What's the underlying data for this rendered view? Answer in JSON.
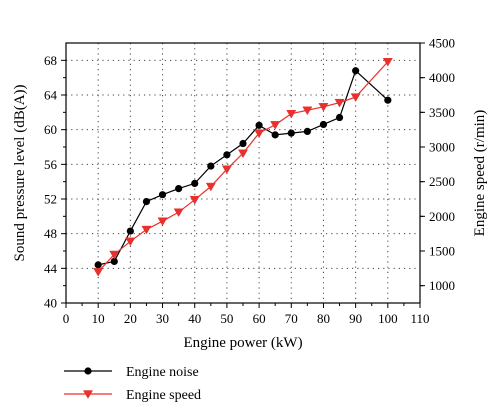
{
  "chart_data": {
    "type": "line",
    "xlabel": "Engine power (kW)",
    "ylabel_left": "Sound pressure level (dB(A))",
    "ylabel_right": "Engine speed (r/min)",
    "xlim": [
      0,
      110
    ],
    "ylim_left": [
      40,
      70
    ],
    "ylim_right": [
      750,
      4500
    ],
    "x_ticks": [
      0,
      10,
      20,
      30,
      40,
      50,
      60,
      70,
      80,
      90,
      100,
      110
    ],
    "y_left_ticks": [
      40,
      44,
      48,
      52,
      56,
      60,
      64,
      68
    ],
    "y_right_ticks": [
      1000,
      1500,
      2000,
      2500,
      3000,
      3500,
      4000,
      4500
    ],
    "grid": true,
    "legend_position": "below",
    "series": [
      {
        "name": "Engine noise",
        "axis": "left",
        "color": "#000000",
        "marker": "circle",
        "x": [
          10,
          15,
          20,
          25,
          30,
          35,
          40,
          45,
          50,
          55,
          60,
          65,
          70,
          75,
          80,
          85,
          90,
          100
        ],
        "y": [
          44.4,
          44.8,
          48.3,
          51.7,
          52.5,
          53.2,
          53.8,
          55.8,
          57.1,
          58.4,
          60.5,
          59.4,
          59.6,
          59.8,
          60.6,
          61.4,
          66.8,
          63.4
        ]
      },
      {
        "name": "Engine speed",
        "axis": "right",
        "color": "#e8312c",
        "marker": "triangle-down",
        "x": [
          10,
          15,
          20,
          25,
          30,
          35,
          40,
          45,
          50,
          55,
          60,
          65,
          70,
          75,
          80,
          85,
          90,
          100
        ],
        "y": [
          1200,
          1450,
          1640,
          1810,
          1930,
          2060,
          2240,
          2430,
          2680,
          2910,
          3200,
          3320,
          3480,
          3530,
          3580,
          3640,
          3720,
          4230
        ]
      }
    ]
  }
}
